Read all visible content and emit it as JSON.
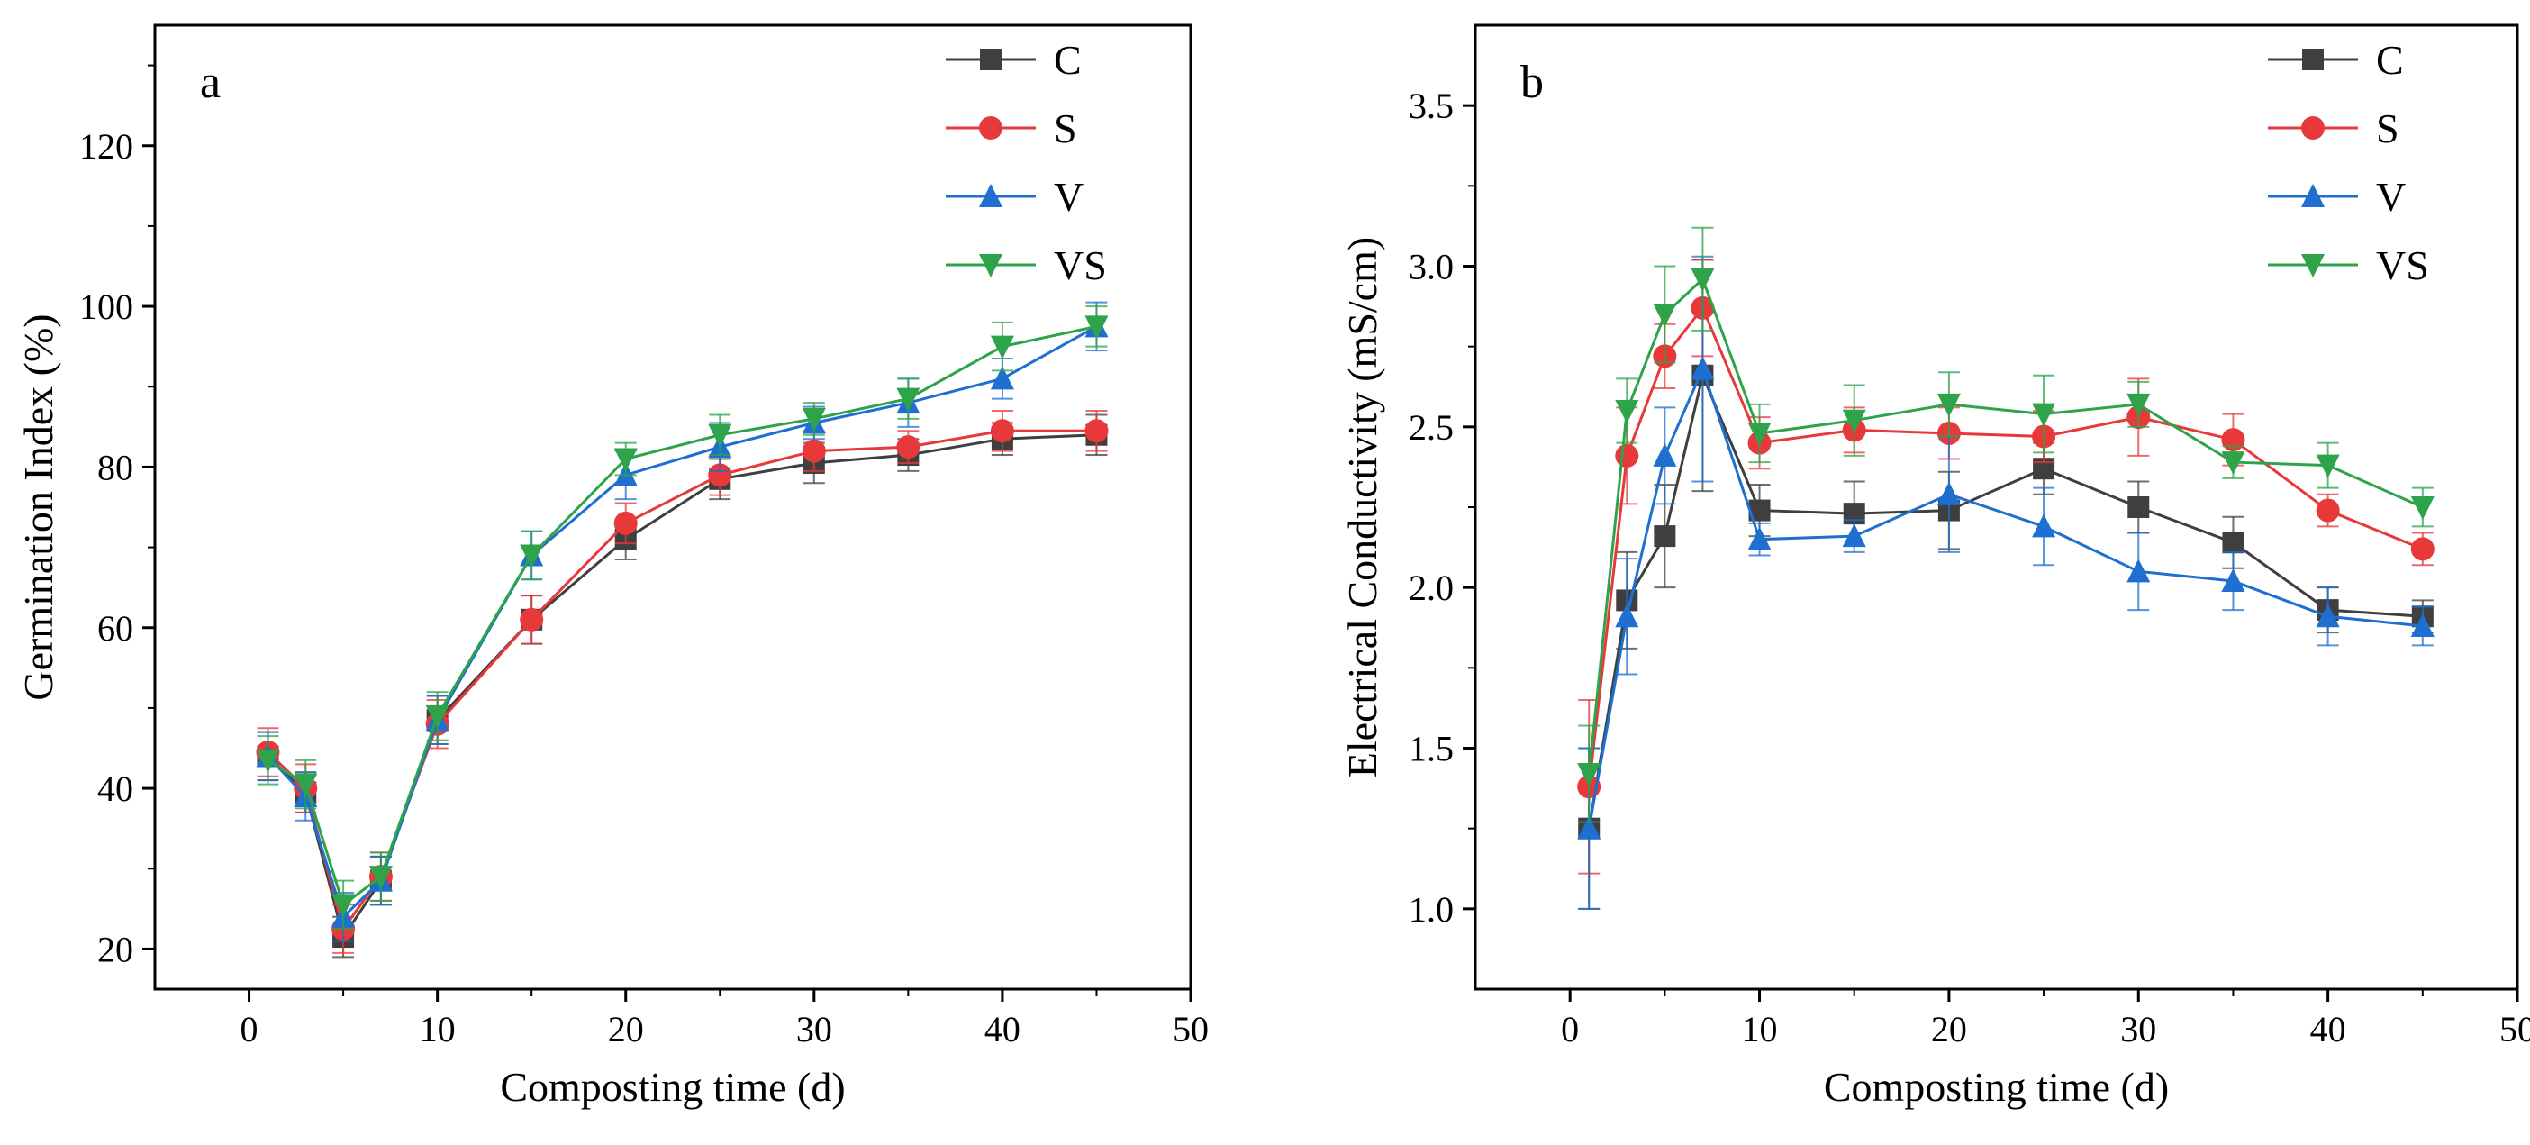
{
  "chart_data": [
    {
      "type": "line",
      "panel_letter": "a",
      "xlabel": "Composting time (d)",
      "ylabel": "Germination Index (%)",
      "xlim": [
        -5,
        50
      ],
      "ylim": [
        15,
        135
      ],
      "xticks": [
        0,
        10,
        20,
        30,
        40,
        50
      ],
      "yticks": [
        20,
        40,
        60,
        80,
        100,
        120
      ],
      "legend_position": "top-right",
      "grid": false,
      "x": [
        1,
        3,
        5,
        7,
        10,
        15,
        20,
        25,
        30,
        35,
        40,
        45
      ],
      "series": [
        {
          "name": "C",
          "color": "#3f3f3f",
          "marker": "square",
          "values": [
            44,
            39.5,
            21.5,
            28.5,
            48.5,
            61,
            71,
            78.5,
            80.5,
            81.5,
            83.5,
            84
          ],
          "errors": [
            3,
            2.5,
            2.5,
            3,
            3,
            3,
            2.5,
            2.5,
            2.5,
            2,
            2,
            2.5
          ]
        },
        {
          "name": "S",
          "color": "#e8393a",
          "marker": "circle",
          "values": [
            44.5,
            40,
            22.5,
            29,
            48,
            61,
            73,
            79,
            82,
            82.5,
            84.5,
            84.5
          ],
          "errors": [
            3,
            3,
            3,
            3,
            3,
            3,
            2.5,
            2.5,
            2.5,
            2,
            2.5,
            2.5
          ]
        },
        {
          "name": "V",
          "color": "#1e6fd0",
          "marker": "triangle-up",
          "values": [
            44,
            39,
            24,
            28.5,
            48.5,
            69,
            79,
            82.5,
            85.5,
            88,
            91,
            97.5
          ],
          "errors": [
            3,
            3,
            3,
            3,
            3,
            3,
            3,
            3,
            2,
            3,
            2.5,
            3
          ]
        },
        {
          "name": "VS",
          "color": "#2ea34a",
          "marker": "triangle-down",
          "values": [
            43.5,
            40.5,
            25.5,
            29,
            49,
            69,
            81,
            84,
            86,
            88.5,
            95,
            97.5
          ],
          "errors": [
            3,
            3,
            3,
            3,
            3,
            3,
            2,
            2.5,
            2,
            2.5,
            3,
            2.5
          ]
        }
      ]
    },
    {
      "type": "line",
      "panel_letter": "b",
      "xlabel": "Composting time (d)",
      "ylabel": "Electrical Conductivity (mS/cm)",
      "xlim": [
        -5,
        50
      ],
      "ylim": [
        0.75,
        3.75
      ],
      "xticks": [
        0,
        10,
        20,
        30,
        40,
        50
      ],
      "yticks": [
        1.0,
        1.5,
        2.0,
        2.5,
        3.0,
        3.5
      ],
      "legend_position": "top-right",
      "grid": false,
      "x": [
        1,
        3,
        5,
        7,
        10,
        15,
        20,
        25,
        30,
        35,
        40,
        45
      ],
      "series": [
        {
          "name": "C",
          "color": "#3f3f3f",
          "marker": "square",
          "values": [
            1.25,
            1.96,
            2.16,
            2.66,
            2.24,
            2.23,
            2.24,
            2.37,
            2.25,
            2.14,
            1.93,
            1.91
          ],
          "errors": [
            0.25,
            0.15,
            0.16,
            0.36,
            0.08,
            0.1,
            0.12,
            0.08,
            0.08,
            0.08,
            0.07,
            0.05
          ]
        },
        {
          "name": "S",
          "color": "#e8393a",
          "marker": "circle",
          "values": [
            1.38,
            2.41,
            2.72,
            2.87,
            2.45,
            2.49,
            2.48,
            2.47,
            2.53,
            2.46,
            2.24,
            2.12
          ],
          "errors": [
            0.27,
            0.15,
            0.1,
            0.15,
            0.08,
            0.07,
            0.08,
            0.08,
            0.12,
            0.08,
            0.05,
            0.05
          ]
        },
        {
          "name": "V",
          "color": "#1e6fd0",
          "marker": "triangle-up",
          "values": [
            1.25,
            1.91,
            2.41,
            2.68,
            2.15,
            2.16,
            2.29,
            2.19,
            2.05,
            2.02,
            1.91,
            1.88
          ],
          "errors": [
            0.25,
            0.18,
            0.15,
            0.35,
            0.05,
            0.05,
            0.18,
            0.12,
            0.12,
            0.09,
            0.09,
            0.06
          ]
        },
        {
          "name": "VS",
          "color": "#2ea34a",
          "marker": "triangle-down",
          "values": [
            1.42,
            2.55,
            2.85,
            2.96,
            2.48,
            2.52,
            2.57,
            2.54,
            2.57,
            2.39,
            2.38,
            2.25
          ],
          "errors": [
            0.15,
            0.1,
            0.15,
            0.16,
            0.09,
            0.11,
            0.1,
            0.12,
            0.07,
            0.05,
            0.07,
            0.06
          ]
        }
      ]
    }
  ]
}
